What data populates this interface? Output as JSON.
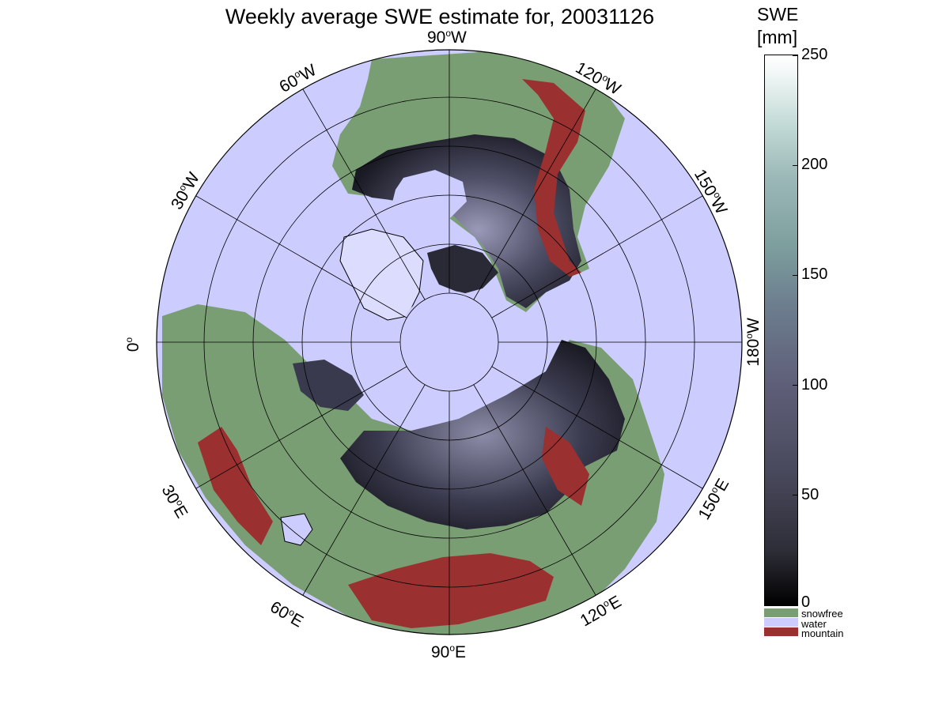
{
  "title": "Weekly average SWE estimate for, 20031126",
  "colorbar": {
    "title_line1": "SWE",
    "title_line2": "[mm]",
    "ticks": [
      "250",
      "200",
      "150",
      "100",
      "50",
      "0"
    ]
  },
  "legend": [
    {
      "label": "snowfree",
      "color": "#7a9e73"
    },
    {
      "label": "water",
      "color": "#ccccff"
    },
    {
      "label": "mountain",
      "color": "#9b3030"
    }
  ],
  "longitude_labels": {
    "lon_90w": {
      "deg": "90",
      "dir": "W"
    },
    "lon_120w": {
      "deg": "120",
      "dir": "W"
    },
    "lon_150w": {
      "deg": "150",
      "dir": "W"
    },
    "lon_180w": {
      "deg": "180",
      "dir": "W"
    },
    "lon_150e": {
      "deg": "150",
      "dir": "E"
    },
    "lon_120e": {
      "deg": "120",
      "dir": "E"
    },
    "lon_90e": {
      "deg": "90",
      "dir": "E"
    },
    "lon_60e": {
      "deg": "60",
      "dir": "E"
    },
    "lon_30e": {
      "deg": "30",
      "dir": "E"
    },
    "lon_0": {
      "deg": "0",
      "dir": ""
    },
    "lon_30w": {
      "deg": "30",
      "dir": "W"
    },
    "lon_60w": {
      "deg": "60",
      "dir": "W"
    }
  },
  "colors": {
    "water": "#ccccff",
    "snowfree": "#7a9e73",
    "mountain": "#9b3030",
    "snow_low": "#1a1a22",
    "snow_mid": "#4d4d66",
    "snow_high": "#8a8aa6",
    "ice": "#dcdcff"
  }
}
